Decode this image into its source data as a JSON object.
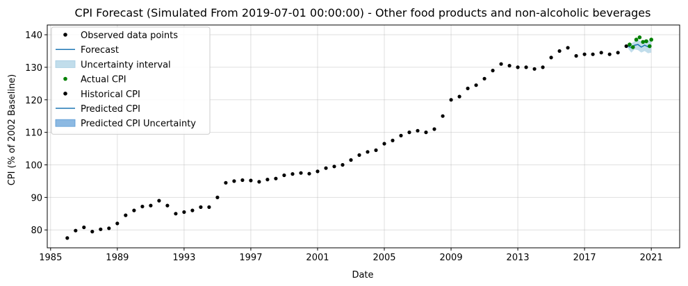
{
  "chart_data": {
    "type": "line",
    "title": "CPI Forecast (Simulated From 2019-07-01 00:00:00) - Other food products and non-alcoholic beverages",
    "xlabel": "Date",
    "ylabel": "CPI (% of 2002 Baseline)",
    "xlim": [
      1984.8,
      2022.7
    ],
    "ylim": [
      74.5,
      143
    ],
    "x_ticks": [
      1985,
      1989,
      1993,
      1997,
      2001,
      2005,
      2009,
      2013,
      2017,
      2021
    ],
    "y_ticks": [
      80,
      90,
      100,
      110,
      120,
      130,
      140
    ],
    "grid": true,
    "legend_position": "top-left",
    "colors": {
      "observed": "#000000",
      "forecast": "#1f77b4",
      "uncertainty": "#a6cee3",
      "actual": "#008000",
      "predicted_uncertainty": "#5b9bd5"
    },
    "legend": [
      {
        "label": "Observed data points",
        "kind": "dot",
        "color": "#000000"
      },
      {
        "label": "Forecast",
        "kind": "line",
        "color": "#1f77b4"
      },
      {
        "label": "Uncertainty interval",
        "kind": "patch",
        "color": "#a6cee3"
      },
      {
        "label": "Actual CPI",
        "kind": "dot",
        "color": "#008000"
      },
      {
        "label": "Historical CPI",
        "kind": "dot",
        "color": "#000000"
      },
      {
        "label": "Predicted CPI",
        "kind": "line",
        "color": "#1f77b4"
      },
      {
        "label": "Predicted CPI Uncertainty",
        "kind": "patch",
        "color": "#5b9bd5"
      }
    ],
    "series": [
      {
        "name": "Historical CPI",
        "x": [
          1986.0,
          1986.5,
          1987.0,
          1987.5,
          1988.0,
          1988.5,
          1989.0,
          1989.5,
          1990.0,
          1990.5,
          1991.0,
          1991.5,
          1992.0,
          1992.5,
          1993.0,
          1993.5,
          1994.0,
          1994.5,
          1995.0,
          1995.5,
          1996.0,
          1996.5,
          1997.0,
          1997.5,
          1998.0,
          1998.5,
          1999.0,
          1999.5,
          2000.0,
          2000.5,
          2001.0,
          2001.5,
          2002.0,
          2002.5,
          2003.0,
          2003.5,
          2004.0,
          2004.5,
          2005.0,
          2005.5,
          2006.0,
          2006.5,
          2007.0,
          2007.5,
          2008.0,
          2008.5,
          2009.0,
          2009.5,
          2010.0,
          2010.5,
          2011.0,
          2011.5,
          2012.0,
          2012.5,
          2013.0,
          2013.5,
          2014.0,
          2014.5,
          2015.0,
          2015.5,
          2016.0,
          2016.5,
          2017.0,
          2017.5,
          2018.0,
          2018.5,
          2019.0,
          2019.5
        ],
        "y": [
          77.5,
          79.8,
          80.8,
          79.5,
          80.2,
          80.5,
          82.0,
          84.5,
          86.0,
          87.2,
          87.5,
          89.0,
          87.5,
          85.0,
          85.5,
          86.0,
          87.0,
          87.0,
          90.0,
          94.5,
          95.0,
          95.3,
          95.2,
          94.8,
          95.5,
          95.8,
          96.8,
          97.2,
          97.5,
          97.3,
          98.0,
          99.0,
          99.5,
          100.0,
          101.5,
          103.0,
          104.0,
          104.5,
          106.5,
          107.5,
          109.0,
          110.0,
          110.5,
          110.0,
          111.0,
          115.0,
          120.0,
          121.0,
          123.5,
          124.5,
          126.5,
          129.0,
          131.0,
          130.5,
          130.0,
          130.0,
          129.5,
          130.0,
          133.0,
          135.0,
          136.0,
          133.5,
          134.0,
          134.0,
          134.5,
          134.0,
          134.5,
          136.5
        ]
      },
      {
        "name": "Actual CPI",
        "x": [
          2019.7,
          2019.9,
          2020.1,
          2020.3,
          2020.5,
          2020.7,
          2020.9,
          2021.0
        ],
        "y": [
          137.0,
          136.2,
          138.5,
          139.2,
          137.8,
          138.0,
          136.5,
          138.5
        ]
      },
      {
        "name": "Predicted CPI",
        "x": [
          2019.6,
          2019.8,
          2020.0,
          2020.2,
          2020.4,
          2020.6,
          2020.8,
          2021.0
        ],
        "y": [
          136.5,
          136.0,
          136.8,
          137.0,
          136.2,
          136.8,
          136.3,
          136.5
        ]
      },
      {
        "name": "Predicted CPI Uncertainty",
        "x": [
          2019.6,
          2019.8,
          2020.0,
          2020.2,
          2020.4,
          2020.6,
          2020.8,
          2021.0
        ],
        "lower": [
          135.8,
          134.5,
          135.5,
          135.3,
          134.5,
          135.0,
          134.3,
          134.5
        ],
        "upper": [
          137.3,
          137.3,
          138.0,
          138.5,
          137.8,
          138.5,
          138.2,
          138.3
        ]
      }
    ]
  }
}
